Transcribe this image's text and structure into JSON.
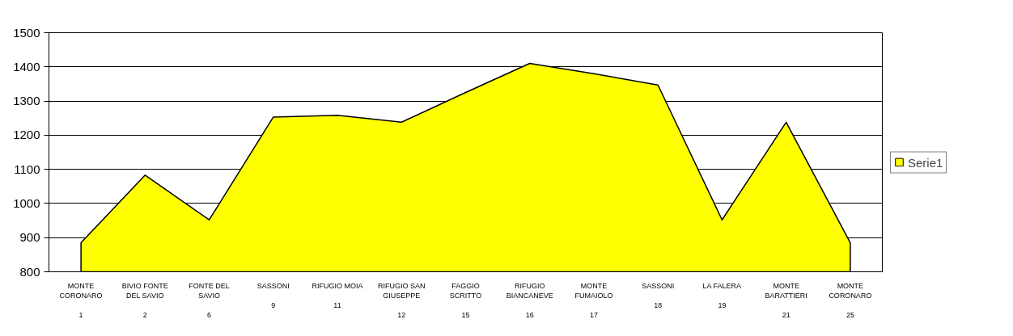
{
  "chart_data": {
    "type": "area",
    "categories": [
      "MONTE CORONARO\n1",
      "BIVIO FONTE DEL SAVIO\n2",
      "FONTE DEL SAVIO\n6",
      "SASSONI\n9",
      "RIFUGIO MOIA\n11",
      "RIFUGIO SAN GIUSEPPE\n12",
      "FAGGIO SCRITTO\n15",
      "RIFUGIO BIANCANEVE\n16",
      "MONTE FUMAIOLO\n17",
      "SASSONI\n18",
      "LA FALERA\n19",
      "MONTE BARATTIERI\n21",
      "MONTE CORONARO\n25"
    ],
    "series": [
      {
        "name": "Serie1",
        "color": "#ffff00",
        "values": [
          885,
          1083,
          952,
          1253,
          1258,
          1238,
          1325,
          1410,
          1380,
          1347,
          952,
          1238,
          885
        ]
      }
    ],
    "ylim": [
      800,
      1500
    ],
    "yticks": [
      800,
      900,
      1000,
      1100,
      1200,
      1300,
      1400,
      1500
    ],
    "grid": "y",
    "legend": "right"
  }
}
